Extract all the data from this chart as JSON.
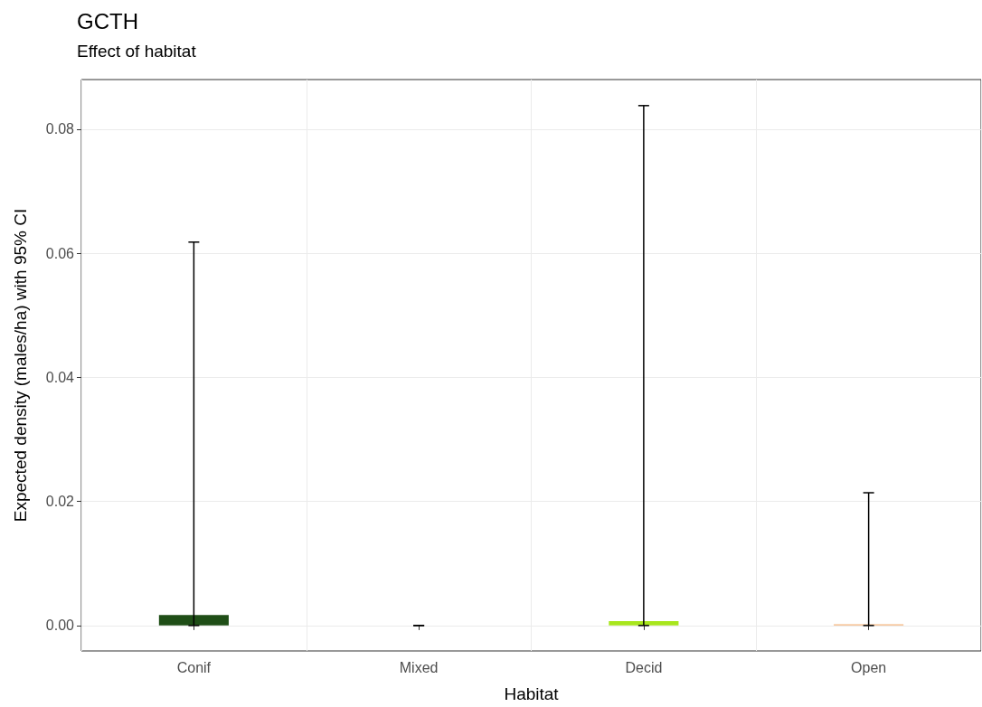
{
  "chart_data": {
    "type": "bar",
    "title": "GCTH",
    "subtitle": "Effect of habitat",
    "xlabel": "Habitat",
    "ylabel": "Expected density (males/ha) with 95% CI",
    "categories": [
      "Conif",
      "Mixed",
      "Decid",
      "Open"
    ],
    "values": [
      0.0017,
      0,
      0.0007,
      0.0002
    ],
    "colors": [
      "#1f4e17",
      "#6b8e23",
      "#a8e61d",
      "#f4b47c"
    ],
    "errors": [
      [
        0,
        0.0618
      ],
      [
        0,
        0
      ],
      [
        0,
        0.0838
      ],
      [
        0,
        0.0214
      ]
    ],
    "ylim": [
      -0.0041,
      0.088
    ],
    "yticks": [
      {
        "value": 0,
        "label": "0.00"
      },
      0.02,
      0.04,
      0.06,
      0.08
    ],
    "grid": true
  }
}
